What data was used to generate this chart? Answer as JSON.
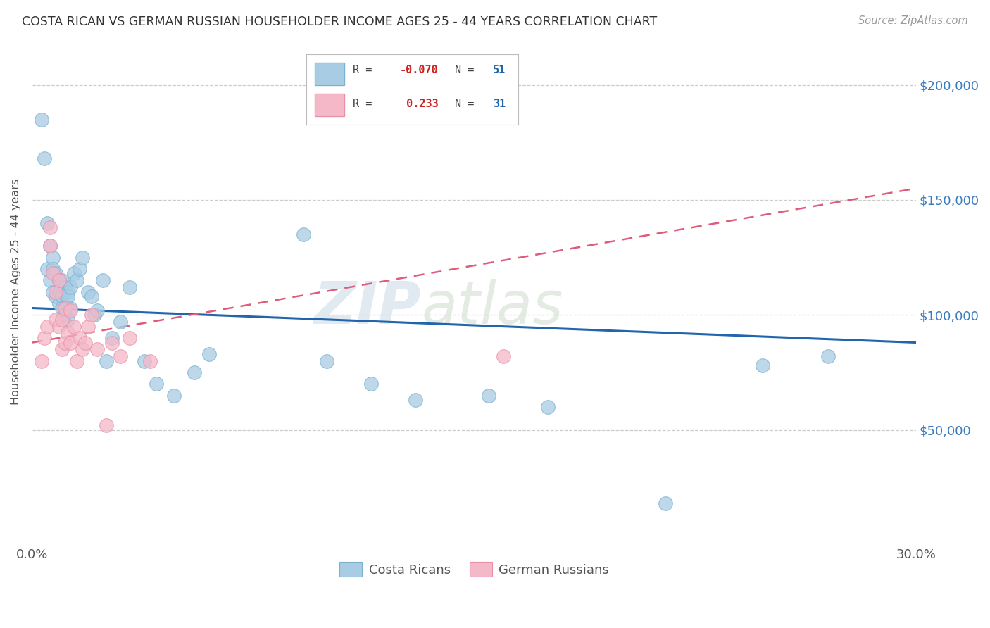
{
  "title": "COSTA RICAN VS GERMAN RUSSIAN HOUSEHOLDER INCOME AGES 25 - 44 YEARS CORRELATION CHART",
  "source": "Source: ZipAtlas.com",
  "ylabel": "Householder Income Ages 25 - 44 years",
  "xlim": [
    0.0,
    0.3
  ],
  "ylim": [
    0,
    220000
  ],
  "xticks": [
    0.0,
    0.05,
    0.1,
    0.15,
    0.2,
    0.25,
    0.3
  ],
  "xtick_labels": [
    "0.0%",
    "",
    "",
    "",
    "",
    "",
    "30.0%"
  ],
  "ytick_labels": [
    "$50,000",
    "$100,000",
    "$150,000",
    "$200,000"
  ],
  "ytick_values": [
    50000,
    100000,
    150000,
    200000
  ],
  "color_blue": "#a8cce4",
  "color_pink": "#f4b8c8",
  "line_color_blue": "#2166ac",
  "line_color_pink": "#e05a7a",
  "watermark_zip": "ZIP",
  "watermark_atlas": "atlas",
  "blue_line_x": [
    0.0,
    0.3
  ],
  "blue_line_y": [
    103000,
    88000
  ],
  "pink_line_x": [
    0.0,
    0.3
  ],
  "pink_line_y": [
    88000,
    155000
  ],
  "costa_rican_x": [
    0.003,
    0.004,
    0.005,
    0.005,
    0.006,
    0.006,
    0.007,
    0.007,
    0.007,
    0.008,
    0.008,
    0.009,
    0.009,
    0.009,
    0.01,
    0.01,
    0.01,
    0.011,
    0.011,
    0.012,
    0.012,
    0.012,
    0.013,
    0.013,
    0.014,
    0.015,
    0.016,
    0.017,
    0.019,
    0.02,
    0.021,
    0.022,
    0.024,
    0.025,
    0.027,
    0.03,
    0.033,
    0.038,
    0.042,
    0.048,
    0.055,
    0.06,
    0.092,
    0.1,
    0.115,
    0.13,
    0.155,
    0.175,
    0.215,
    0.248,
    0.27
  ],
  "costa_rican_y": [
    185000,
    168000,
    140000,
    120000,
    130000,
    115000,
    125000,
    120000,
    110000,
    118000,
    108000,
    115000,
    110000,
    105000,
    115000,
    108000,
    103000,
    112000,
    100000,
    110000,
    108000,
    98000,
    112000,
    103000,
    118000,
    115000,
    120000,
    125000,
    110000,
    108000,
    100000,
    102000,
    115000,
    80000,
    90000,
    97000,
    112000,
    80000,
    70000,
    65000,
    75000,
    83000,
    135000,
    80000,
    70000,
    63000,
    65000,
    60000,
    18000,
    78000,
    82000
  ],
  "german_russian_x": [
    0.003,
    0.004,
    0.005,
    0.006,
    0.006,
    0.007,
    0.008,
    0.008,
    0.009,
    0.009,
    0.01,
    0.01,
    0.011,
    0.011,
    0.012,
    0.013,
    0.013,
    0.014,
    0.015,
    0.016,
    0.017,
    0.018,
    0.019,
    0.02,
    0.022,
    0.025,
    0.027,
    0.03,
    0.033,
    0.04,
    0.16
  ],
  "german_russian_y": [
    80000,
    90000,
    95000,
    130000,
    138000,
    118000,
    110000,
    98000,
    115000,
    95000,
    98000,
    85000,
    103000,
    88000,
    92000,
    102000,
    88000,
    95000,
    80000,
    90000,
    85000,
    88000,
    95000,
    100000,
    85000,
    52000,
    88000,
    82000,
    90000,
    80000,
    82000
  ]
}
